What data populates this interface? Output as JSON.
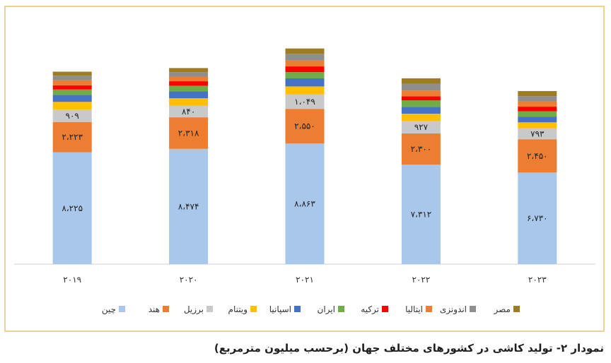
{
  "caption": "نمودار ۲- تولید کاشی در کشورهای مختلف جهان (برحسب میلیون مترمربع)",
  "chart_data": {
    "type": "bar",
    "stacked": true,
    "categories": [
      "۲۰۱۹",
      "۲۰۲۰",
      "۲۰۲۱",
      "۲۰۲۲",
      "۲۰۲۳"
    ],
    "series": [
      {
        "name": "چین",
        "color": "#a9c7ea",
        "values": [
          8225,
          8474,
          8863,
          7312,
          6730
        ],
        "labels": [
          "۸،۲۲۵",
          "۸،۴۷۴",
          "۸،۸۶۳",
          "۷،۳۱۲",
          "۶،۷۳۰"
        ]
      },
      {
        "name": "هند",
        "color": "#ed7d31",
        "values": [
          2223,
          2318,
          2550,
          2300,
          2450
        ],
        "labels": [
          "۲،۲۲۳",
          "۲،۳۱۸",
          "۲،۵۵۰",
          "۲،۳۰۰",
          "۲،۴۵۰"
        ]
      },
      {
        "name": "برزیل",
        "color": "#c9c9c9",
        "values": [
          909,
          840,
          1049,
          927,
          793
        ],
        "labels": [
          "۹۰۹",
          "۸۴۰",
          "۱،۰۴۹",
          "۹۲۷",
          "۷۹۳"
        ]
      },
      {
        "name": "ویتنام",
        "color": "#ffc000",
        "values": [
          570,
          560,
          600,
          520,
          450
        ]
      },
      {
        "name": "اسپانیا",
        "color": "#4472c4",
        "values": [
          510,
          500,
          590,
          500,
          400
        ]
      },
      {
        "name": "ایران",
        "color": "#70ad47",
        "values": [
          400,
          420,
          460,
          480,
          410
        ]
      },
      {
        "name": "ترکیه",
        "color": "#ff0000",
        "values": [
          300,
          330,
          420,
          300,
          340
        ]
      },
      {
        "name": "ایتالیا",
        "color": "#ed7d31",
        "values": [
          380,
          340,
          450,
          420,
          390
        ]
      },
      {
        "name": "اندونزی",
        "color": "#8e8e8e",
        "values": [
          330,
          330,
          470,
          500,
          380
        ]
      },
      {
        "name": "مصر",
        "color": "#9e7c22",
        "values": [
          300,
          300,
          400,
          400,
          380
        ]
      }
    ],
    "ylim": [
      0,
      19000
    ],
    "grid": false,
    "legend": "bottom"
  }
}
